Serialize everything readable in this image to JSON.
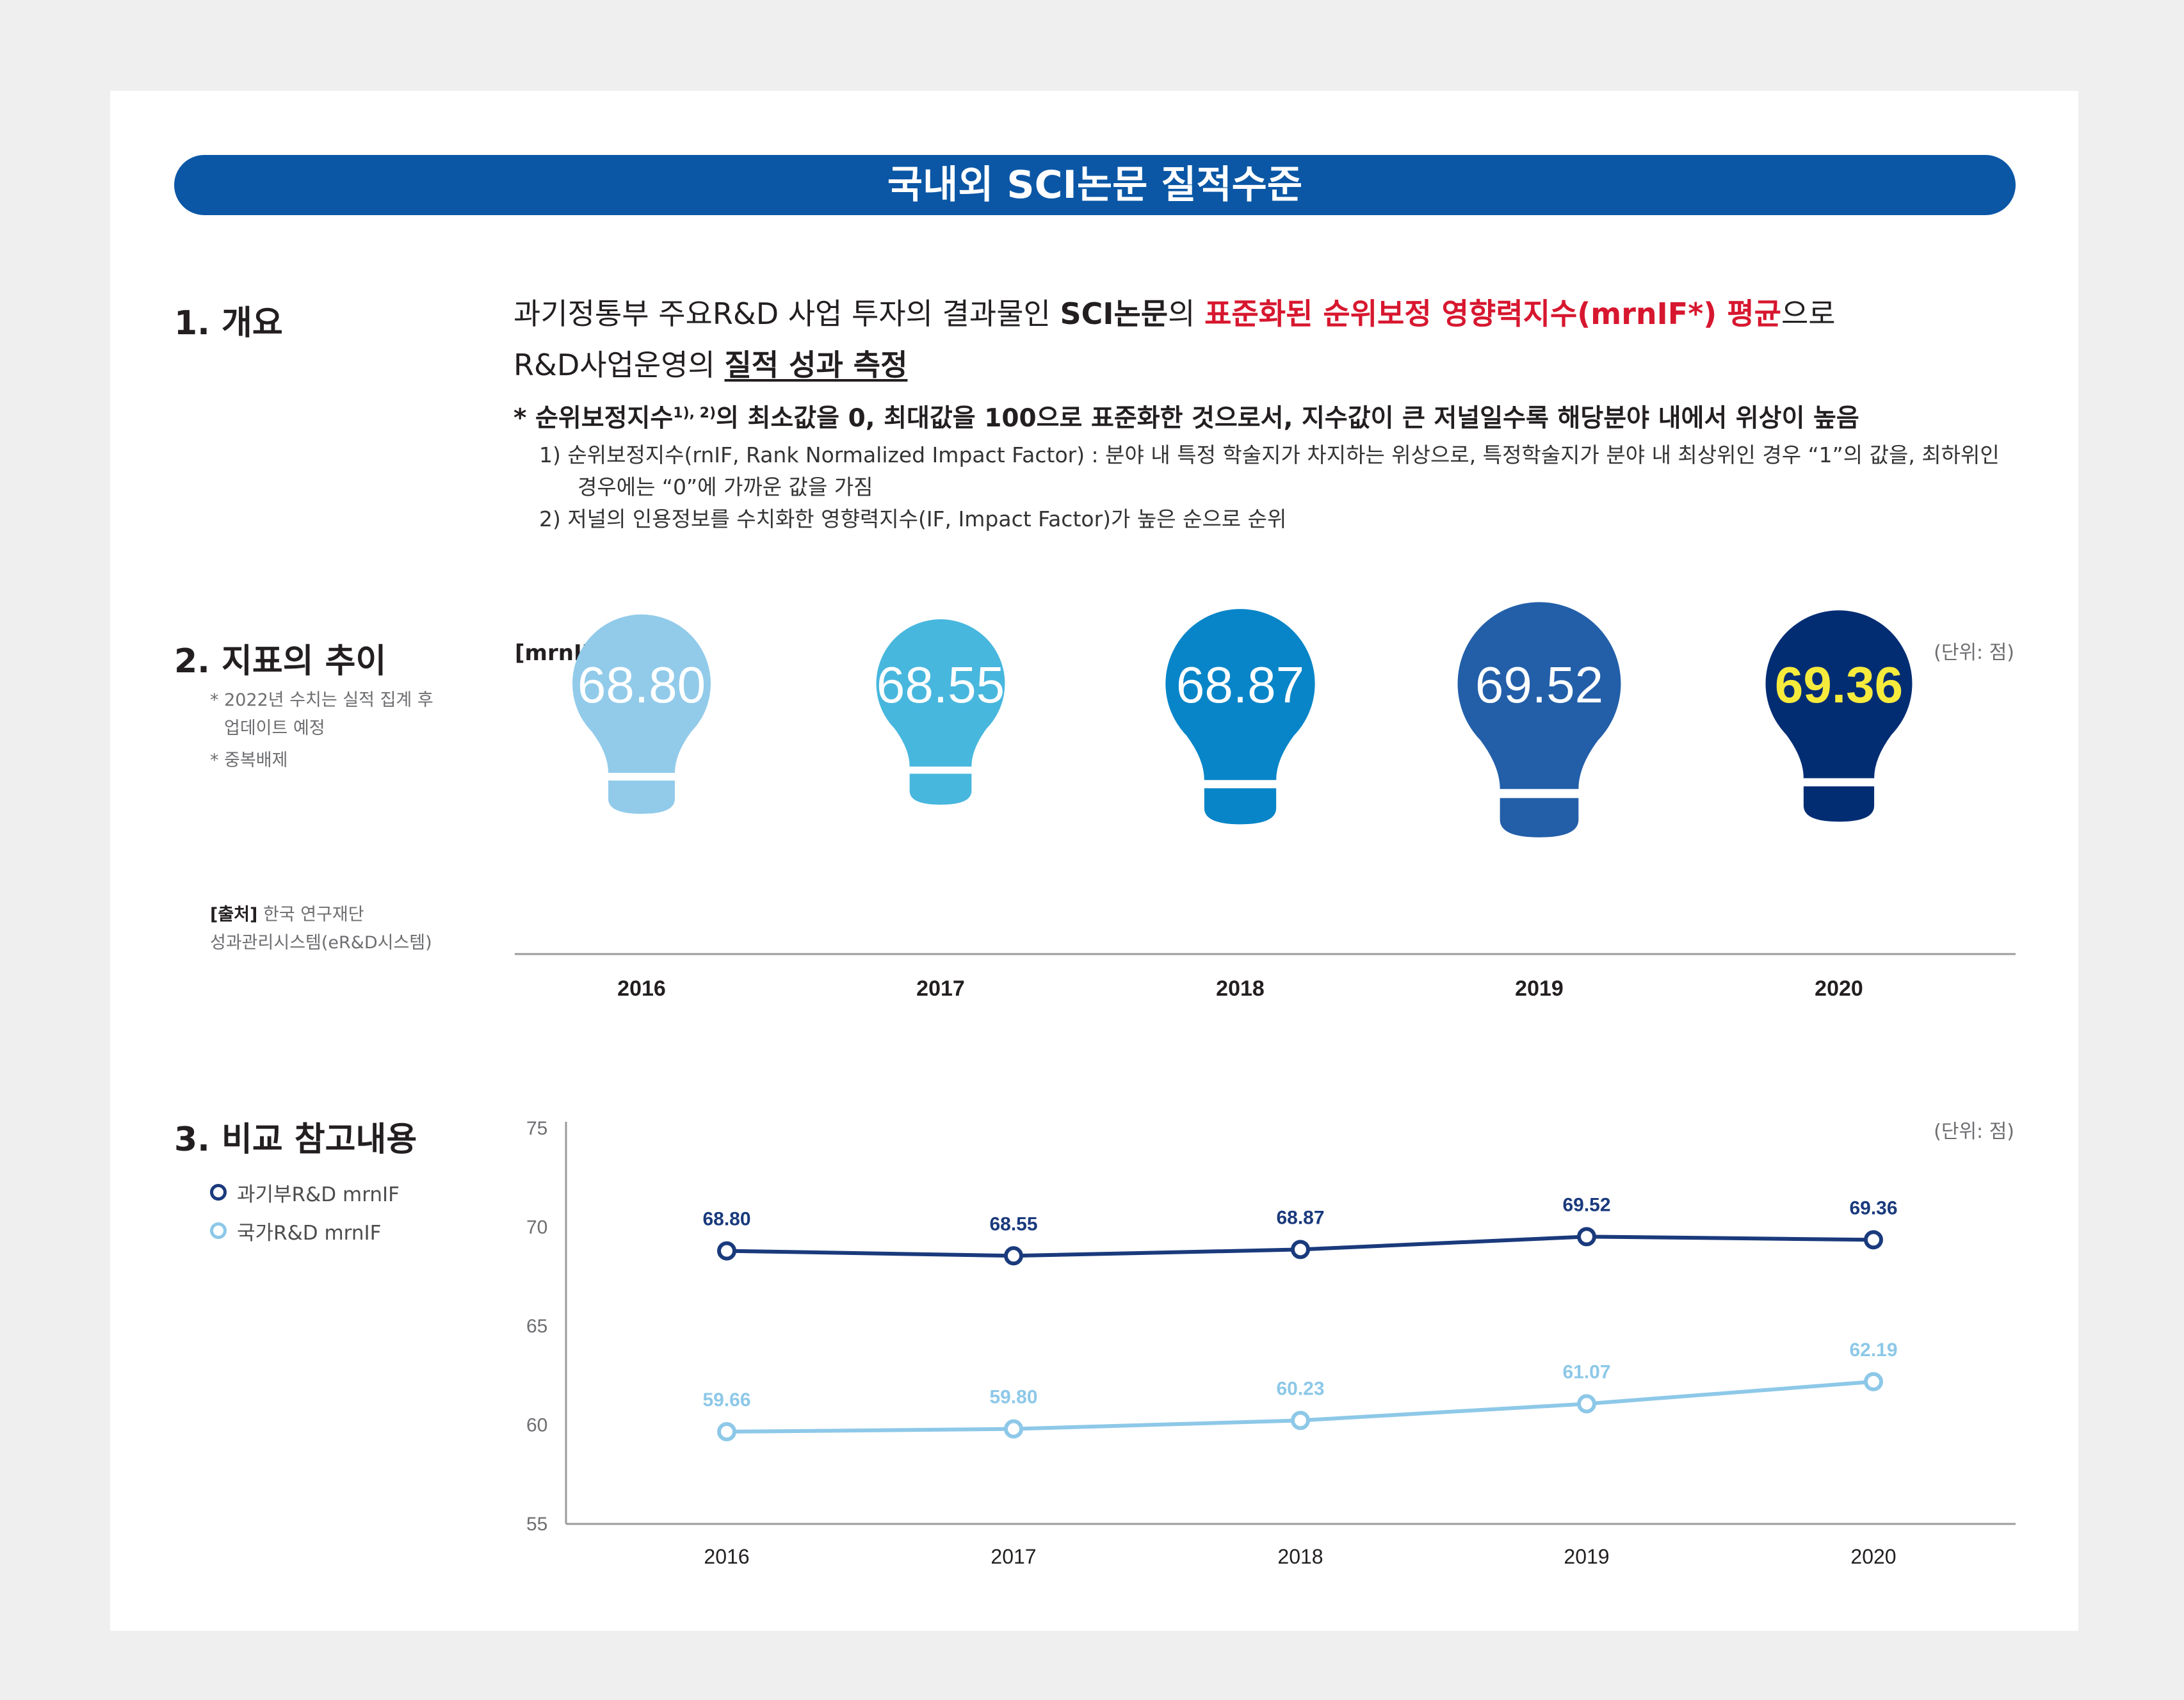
{
  "banner": {
    "title": "국내외 SCI논문 질적수준"
  },
  "overview": {
    "heading": "1. 개요",
    "p1_a": "과기정통부 주요R&D 사업 투자의 결과물인 ",
    "p1_b": "SCI논문",
    "p1_c": "의 ",
    "p1_d": "표준화된 순위보정 영향력지수(mrnIF*) 평균",
    "p1_e": "으로",
    "p2_a": "R&D사업운영의 ",
    "p2_b": "질적 성과 측정",
    "note_a": "* 순위보정지수",
    "note_sup": "1), 2)",
    "note_b": "의 최소값을 0, 최대값을 100으로 표준화한 것으로서, 지수값이 큰 저널일수록 해당분야 내에서 위상이 높음",
    "fn1": "1) 순위보정지수(rnIF, Rank Normalized Impact Factor) : 분야 내 특정 학술지가 차지하는 위상으로, 특정학술지가 분야 내 최상위인 경우 “1”의 값을, 최하위인 경우에는 “0”에 가까운 값을 가짐",
    "fn2": "2) 저널의 인용정보를 수치화한 영향력지수(IF, Impact Factor)가 높은 순으로 순위"
  },
  "trend": {
    "heading": "2. 지표의 추이",
    "side_note1_l1": "* 2022년 수치는 실적 집계 후",
    "side_note1_l2": "업데이트 예정",
    "side_note2": "* 중복배제",
    "source_label": "[출처]",
    "source_l1": "한국 연구재단",
    "source_l2": "성과관리시스템(eR&D시스템)",
    "chart_label": "[mrnIF 추이]",
    "unit": "(단위: 점)"
  },
  "compare": {
    "heading": "3. 비교 참고내용",
    "unit": "(단위: 점)",
    "legend": [
      {
        "label": "과기부R&D mrnIF",
        "color": "#1a3a7c"
      },
      {
        "label": "국가R&D mrnIF",
        "color": "#8dc8e8"
      }
    ]
  },
  "chart_data": [
    {
      "type": "bar",
      "title": "[mrnIF 추이]",
      "categories": [
        "2016",
        "2017",
        "2018",
        "2019",
        "2020"
      ],
      "values": [
        "68.80",
        "68.55",
        "68.87",
        "69.52",
        "69.36"
      ],
      "colors": [
        "#92cbea",
        "#48b7de",
        "#0885c8",
        "#235fa9",
        "#032d73"
      ],
      "highlight_color": "#f6eb3c"
    },
    {
      "type": "line",
      "x": [
        "2016",
        "2017",
        "2018",
        "2019",
        "2020"
      ],
      "ylim": [
        55,
        75
      ],
      "yticks": [
        "75",
        "70",
        "65",
        "60",
        "55"
      ],
      "series": [
        {
          "name": "과기부R&D mrnIF",
          "values": [
            "68.80",
            "68.55",
            "68.87",
            "69.52",
            "69.36"
          ],
          "color": "#1a3a7c"
        },
        {
          "name": "국가R&D mrnIF",
          "values": [
            "59.66",
            "59.80",
            "60.23",
            "61.07",
            "62.19"
          ],
          "color": "#8dc8e8"
        }
      ]
    }
  ]
}
